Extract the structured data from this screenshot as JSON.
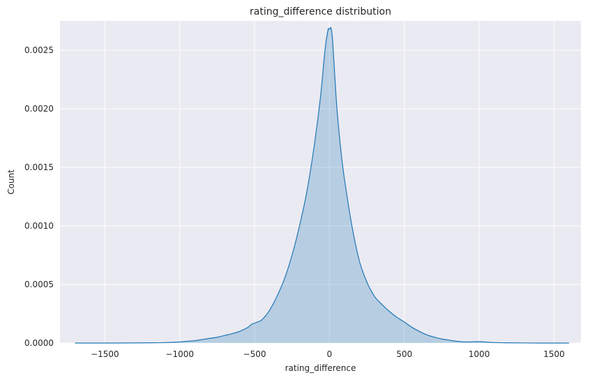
{
  "chart_data": {
    "type": "area",
    "title": "rating_difference distribution",
    "xlabel": "rating_difference",
    "ylabel": "Count",
    "xlim": [
      -1800,
      1680
    ],
    "ylim": [
      0,
      0.00275
    ],
    "grid": true,
    "background": "#eaeaf2",
    "colors": {
      "line": "#1f77b4",
      "fill": "#1f77b4",
      "grid": "#ffffff",
      "text": "#262626"
    },
    "x_ticks": [
      -1500,
      -1000,
      -500,
      0,
      500,
      1000,
      1500
    ],
    "x_tick_labels": [
      "−1500",
      "−1000",
      "−500",
      "0",
      "500",
      "1000",
      "1500"
    ],
    "y_ticks": [
      0,
      0.0005,
      0.001,
      0.0015,
      0.002,
      0.0025
    ],
    "y_tick_labels": [
      "0.0000",
      "0.0005",
      "0.0010",
      "0.0015",
      "0.0020",
      "0.0025"
    ],
    "series": [
      {
        "x": [
          -1700,
          -1500,
          -1200,
          -1100,
          -1000,
          -950,
          -900,
          -850,
          -800,
          -750,
          -700,
          -650,
          -600,
          -550,
          -520,
          -500,
          -480,
          -450,
          -400,
          -350,
          -300,
          -250,
          -200,
          -150,
          -100,
          -60,
          -30,
          -10,
          0,
          10,
          20,
          30,
          50,
          80,
          100,
          150,
          200,
          250,
          300,
          350,
          400,
          450,
          500,
          550,
          600,
          650,
          700,
          750,
          800,
          850,
          900,
          950,
          1000,
          1050,
          1100,
          1200,
          1300,
          1400,
          1500,
          1600
        ],
        "y": [
          0,
          0,
          2e-06,
          4e-06,
          1e-05,
          1.5e-05,
          2e-05,
          3e-05,
          4e-05,
          5e-05,
          6.5e-05,
          8e-05,
          0.0001,
          0.00013,
          0.00016,
          0.00017,
          0.00018,
          0.0002,
          0.00028,
          0.0004,
          0.00055,
          0.00075,
          0.001,
          0.0013,
          0.0017,
          0.0021,
          0.0025,
          0.00267,
          0.00268,
          0.00269,
          0.0026,
          0.0024,
          0.002,
          0.0016,
          0.0014,
          0.001,
          0.0007,
          0.00052,
          0.0004,
          0.00033,
          0.00027,
          0.00022,
          0.00018,
          0.000135,
          0.0001,
          7e-05,
          5e-05,
          3.5e-05,
          2.5e-05,
          1.5e-05,
          1e-05,
          1e-05,
          1.2e-05,
          8e-06,
          4e-06,
          2e-06,
          1e-06,
          0,
          0,
          0
        ]
      }
    ]
  }
}
